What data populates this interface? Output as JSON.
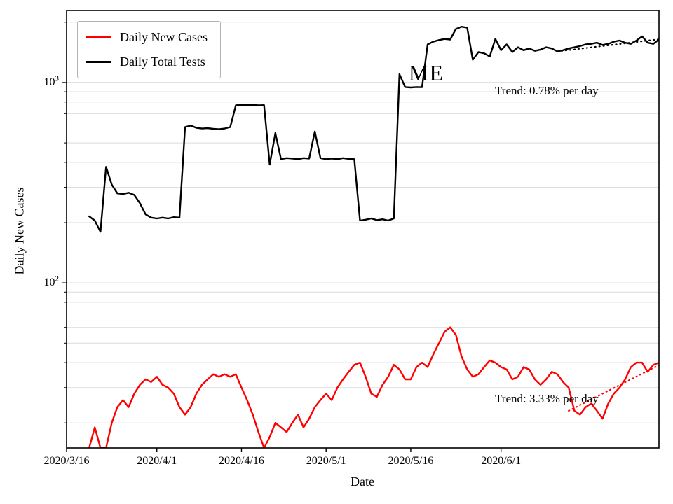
{
  "figure": {
    "state_label": "ME",
    "background": "#ffffff"
  },
  "axes": {
    "xlabel": "Date",
    "ylabel": "Daily New Cases",
    "y_scale": "log"
  },
  "legend": {
    "items": [
      {
        "label": "Daily New Cases",
        "color": "#ff0000"
      },
      {
        "label": "Daily Total Tests",
        "color": "#000000"
      }
    ]
  },
  "annotations": {
    "tests_trend": "Trend: 0.78% per day",
    "cases_trend": "Trend: 3.33% per day"
  },
  "chart_data": {
    "type": "line",
    "title": "",
    "xlabel": "Date",
    "ylabel": "Daily New Cases",
    "y_scale": "log",
    "ylim": [
      15,
      2290
    ],
    "grid": "both-horizontal",
    "legend_position": "upper-left",
    "x_axis": {
      "start_date": "2020/3/16",
      "total_days": 105,
      "ticks": [
        {
          "day": 0,
          "label": "2020/3/16"
        },
        {
          "day": 16,
          "label": "2020/4/1"
        },
        {
          "day": 31,
          "label": "2020/4/16"
        },
        {
          "day": 46,
          "label": "2020/5/1"
        },
        {
          "day": 61,
          "label": "2020/5/16"
        },
        {
          "day": 77,
          "label": "2020/6/1"
        }
      ]
    },
    "y_ticks": [
      {
        "value": 100,
        "base": "10",
        "exponent": "2"
      },
      {
        "value": 1000,
        "base": "10",
        "exponent": "3"
      }
    ],
    "grid_minor": [
      20,
      30,
      40,
      50,
      60,
      70,
      80,
      90,
      200,
      300,
      400,
      500,
      600,
      700,
      800,
      900,
      2000
    ],
    "series": [
      {
        "name": "Daily New Cases",
        "color": "#ff0000",
        "start_day": 4,
        "values": [
          15,
          19,
          15,
          15,
          20,
          24,
          26,
          24,
          28,
          31,
          33,
          32,
          34,
          31,
          30,
          28,
          24,
          22,
          24,
          28,
          31,
          33,
          35,
          34,
          35,
          34,
          35,
          30,
          26,
          22,
          18,
          15,
          17,
          20,
          19,
          18,
          20,
          22,
          19,
          21,
          24,
          26,
          28,
          26,
          30,
          33,
          36,
          39,
          40,
          34,
          28,
          27,
          31,
          34,
          39,
          37,
          33,
          33,
          38,
          40,
          38,
          44,
          50,
          57,
          60,
          55,
          43,
          37,
          34,
          35,
          38,
          41,
          40,
          38,
          37,
          33,
          34,
          38,
          37,
          33,
          31,
          33,
          36,
          35,
          32,
          30,
          23,
          22,
          24,
          25,
          23,
          21,
          25,
          28,
          30,
          33,
          38,
          40,
          40,
          36,
          39,
          40
        ]
      },
      {
        "name": "Daily Total Tests",
        "color": "#000000",
        "start_day": 4,
        "values": [
          215,
          205,
          180,
          380,
          310,
          280,
          278,
          282,
          275,
          250,
          220,
          212,
          210,
          212,
          210,
          213,
          212,
          600,
          610,
          595,
          590,
          592,
          588,
          585,
          590,
          600,
          770,
          775,
          772,
          775,
          770,
          772,
          390,
          560,
          415,
          420,
          418,
          415,
          420,
          418,
          570,
          420,
          415,
          418,
          415,
          420,
          416,
          415,
          205,
          207,
          210,
          206,
          208,
          205,
          210,
          1100,
          950,
          945,
          950,
          948,
          1550,
          1600,
          1630,
          1650,
          1640,
          1850,
          1900,
          1880,
          1300,
          1420,
          1400,
          1350,
          1650,
          1450,
          1550,
          1420,
          1500,
          1450,
          1480,
          1440,
          1460,
          1500,
          1480,
          1430,
          1450,
          1480,
          1500,
          1520,
          1550,
          1560,
          1580,
          1540,
          1560,
          1600,
          1620,
          1580,
          1560,
          1620,
          1700,
          1580,
          1560,
          1640
        ]
      }
    ],
    "trends": [
      {
        "name": "trend-line-tests",
        "color": "#000000",
        "label": "Trend: 0.78% per day",
        "pct_per_day": 0.78,
        "start_day": 87,
        "end_day": 105,
        "start_value": 1430
      },
      {
        "name": "trend-line-cases",
        "color": "#ff0000",
        "label": "Trend: 3.33% per day",
        "pct_per_day": 3.33,
        "start_day": 89,
        "end_day": 105,
        "start_value": 23
      }
    ]
  }
}
